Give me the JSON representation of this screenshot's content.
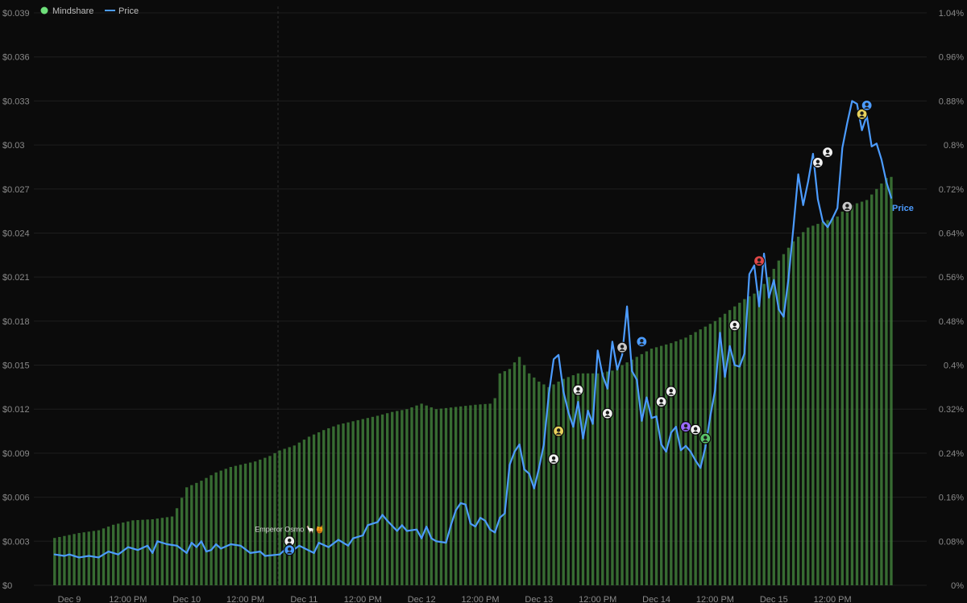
{
  "chart_data": {
    "type": "bar+line",
    "colors": {
      "background": "#0b0b0b",
      "mindshare": "#3f7d3a",
      "mindshare_legend": "#6ee07a",
      "price": "#4c9cff",
      "grid": "#1e1e1e"
    },
    "legend": [
      {
        "name": "Mindshare",
        "marker": "dot"
      },
      {
        "name": "Price",
        "marker": "line"
      }
    ],
    "legend_position": "top-left",
    "grid": true,
    "left_axis": {
      "range": [
        0,
        0.039
      ],
      "ticks": [
        "$0",
        "$0.003",
        "$0.006",
        "$0.009",
        "$0.012",
        "$0.015",
        "$0.018",
        "$0.021",
        "$0.024",
        "$0.027",
        "$0.03",
        "$0.033",
        "$0.036",
        "$0.039"
      ]
    },
    "right_axis": {
      "range": [
        0,
        1.04
      ],
      "ticks": [
        "0%",
        "0.08%",
        "0.16%",
        "0.24%",
        "0.32%",
        "0.4%",
        "0.48%",
        "0.56%",
        "0.64%",
        "0.72%",
        "0.8%",
        "0.88%",
        "0.96%",
        "1.04%"
      ]
    },
    "x_axis": {
      "range": [
        0,
        168
      ],
      "ticks": [
        {
          "x": 0,
          "label": "Dec 9"
        },
        {
          "x": 12,
          "label": "12:00 PM"
        },
        {
          "x": 24,
          "label": "Dec 10"
        },
        {
          "x": 36,
          "label": "12:00 PM"
        },
        {
          "x": 48,
          "label": "Dec 11"
        },
        {
          "x": 60,
          "label": "12:00 PM"
        },
        {
          "x": 72,
          "label": "Dec 12"
        },
        {
          "x": 84,
          "label": "12:00 PM"
        },
        {
          "x": 96,
          "label": "Dec 13"
        },
        {
          "x": 108,
          "label": "12:00 PM"
        },
        {
          "x": 120,
          "label": "Dec 14"
        },
        {
          "x": 132,
          "label": "12:00 PM"
        },
        {
          "x": 144,
          "label": "Dec 15"
        },
        {
          "x": 156,
          "label": "12:00 PM"
        }
      ]
    },
    "mindshare_keys": [
      [
        -3,
        0.086
      ],
      [
        2,
        0.095
      ],
      [
        6,
        0.1
      ],
      [
        9,
        0.11
      ],
      [
        13,
        0.118
      ],
      [
        17,
        0.12
      ],
      [
        21,
        0.125
      ],
      [
        22,
        0.14
      ],
      [
        24,
        0.178
      ],
      [
        27,
        0.19
      ],
      [
        30,
        0.205
      ],
      [
        33,
        0.215
      ],
      [
        38,
        0.225
      ],
      [
        41,
        0.235
      ],
      [
        43,
        0.245
      ],
      [
        46,
        0.254
      ],
      [
        49,
        0.27
      ],
      [
        52,
        0.282
      ],
      [
        55,
        0.292
      ],
      [
        58,
        0.298
      ],
      [
        63,
        0.308
      ],
      [
        66,
        0.315
      ],
      [
        69,
        0.32
      ],
      [
        72,
        0.33
      ],
      [
        75,
        0.32
      ],
      [
        80,
        0.325
      ],
      [
        83,
        0.328
      ],
      [
        86,
        0.33
      ],
      [
        87,
        0.34
      ],
      [
        88,
        0.385
      ],
      [
        90,
        0.393
      ],
      [
        91,
        0.405
      ],
      [
        92,
        0.415
      ],
      [
        94,
        0.385
      ],
      [
        96,
        0.37
      ],
      [
        98,
        0.36
      ],
      [
        101,
        0.375
      ],
      [
        104,
        0.385
      ],
      [
        108,
        0.385
      ],
      [
        111,
        0.39
      ],
      [
        116,
        0.415
      ],
      [
        119,
        0.43
      ],
      [
        123,
        0.44
      ],
      [
        126,
        0.45
      ],
      [
        130,
        0.47
      ],
      [
        132,
        0.48
      ],
      [
        135,
        0.5
      ],
      [
        138,
        0.52
      ],
      [
        141,
        0.535
      ],
      [
        143,
        0.56
      ],
      [
        145,
        0.59
      ],
      [
        148,
        0.625
      ],
      [
        151,
        0.65
      ],
      [
        154,
        0.66
      ],
      [
        157,
        0.67
      ],
      [
        159,
        0.688
      ],
      [
        163,
        0.7
      ],
      [
        165,
        0.72
      ],
      [
        167,
        0.74
      ],
      [
        168,
        0.742
      ]
    ],
    "price_keys": [
      [
        -3,
        0.0021
      ],
      [
        -1,
        0.002
      ],
      [
        0,
        0.0021
      ],
      [
        2,
        0.0019
      ],
      [
        4,
        0.002
      ],
      [
        6,
        0.0019
      ],
      [
        8,
        0.0023
      ],
      [
        10,
        0.0021
      ],
      [
        12,
        0.0026
      ],
      [
        14,
        0.0024
      ],
      [
        16,
        0.0027
      ],
      [
        17,
        0.0022
      ],
      [
        18,
        0.003
      ],
      [
        20,
        0.0028
      ],
      [
        22,
        0.0027
      ],
      [
        24,
        0.0022
      ],
      [
        25,
        0.0029
      ],
      [
        26,
        0.0026
      ],
      [
        27,
        0.003
      ],
      [
        28,
        0.0023
      ],
      [
        29,
        0.0024
      ],
      [
        30,
        0.0028
      ],
      [
        31,
        0.0025
      ],
      [
        33,
        0.0028
      ],
      [
        35,
        0.0027
      ],
      [
        37,
        0.0022
      ],
      [
        39,
        0.0023
      ],
      [
        40,
        0.002
      ],
      [
        43,
        0.0021
      ],
      [
        44,
        0.0024
      ],
      [
        45,
        0.0022
      ],
      [
        47,
        0.0027
      ],
      [
        50,
        0.0022
      ],
      [
        51,
        0.0029
      ],
      [
        53,
        0.0026
      ],
      [
        55,
        0.0031
      ],
      [
        57,
        0.0027
      ],
      [
        58,
        0.0032
      ],
      [
        60,
        0.0034
      ],
      [
        61,
        0.0041
      ],
      [
        62,
        0.0042
      ],
      [
        63,
        0.0043
      ],
      [
        64,
        0.0048
      ],
      [
        65,
        0.0044
      ],
      [
        67,
        0.0037
      ],
      [
        68,
        0.0041
      ],
      [
        69,
        0.0037
      ],
      [
        71,
        0.0038
      ],
      [
        72,
        0.0032
      ],
      [
        73,
        0.004
      ],
      [
        74,
        0.0032
      ],
      [
        75,
        0.003
      ],
      [
        77,
        0.0029
      ],
      [
        78,
        0.0041
      ],
      [
        79,
        0.0051
      ],
      [
        80,
        0.0056
      ],
      [
        81,
        0.0055
      ],
      [
        82,
        0.0042
      ],
      [
        83,
        0.004
      ],
      [
        84,
        0.0046
      ],
      [
        85,
        0.0044
      ],
      [
        86,
        0.0038
      ],
      [
        87,
        0.0036
      ],
      [
        88,
        0.0046
      ],
      [
        89,
        0.0049
      ],
      [
        90,
        0.0082
      ],
      [
        91,
        0.0091
      ],
      [
        92,
        0.0096
      ],
      [
        93,
        0.0079
      ],
      [
        94,
        0.0076
      ],
      [
        95,
        0.0066
      ],
      [
        96,
        0.008
      ],
      [
        97,
        0.0096
      ],
      [
        98,
        0.013
      ],
      [
        99,
        0.0154
      ],
      [
        100,
        0.0157
      ],
      [
        101,
        0.0132
      ],
      [
        102,
        0.0118
      ],
      [
        103,
        0.0108
      ],
      [
        104,
        0.0125
      ],
      [
        105,
        0.01
      ],
      [
        106,
        0.0119
      ],
      [
        107,
        0.011
      ],
      [
        108,
        0.016
      ],
      [
        109,
        0.0143
      ],
      [
        110,
        0.0134
      ],
      [
        111,
        0.0166
      ],
      [
        112,
        0.0147
      ],
      [
        113,
        0.0157
      ],
      [
        114,
        0.019
      ],
      [
        115,
        0.0146
      ],
      [
        116,
        0.014
      ],
      [
        117,
        0.0112
      ],
      [
        118,
        0.0128
      ],
      [
        119,
        0.0114
      ],
      [
        120,
        0.0115
      ],
      [
        121,
        0.0096
      ],
      [
        122,
        0.0091
      ],
      [
        123,
        0.0104
      ],
      [
        124,
        0.0108
      ],
      [
        125,
        0.0092
      ],
      [
        126,
        0.0095
      ],
      [
        127,
        0.0091
      ],
      [
        128,
        0.0085
      ],
      [
        129,
        0.008
      ],
      [
        130,
        0.0094
      ],
      [
        131,
        0.0115
      ],
      [
        132,
        0.0133
      ],
      [
        133,
        0.0172
      ],
      [
        134,
        0.0142
      ],
      [
        135,
        0.0163
      ],
      [
        136,
        0.015
      ],
      [
        137,
        0.0149
      ],
      [
        138,
        0.0158
      ],
      [
        139,
        0.0212
      ],
      [
        140,
        0.0218
      ],
      [
        141,
        0.019
      ],
      [
        142,
        0.0226
      ],
      [
        143,
        0.0196
      ],
      [
        144,
        0.0208
      ],
      [
        145,
        0.0188
      ],
      [
        146,
        0.0183
      ],
      [
        147,
        0.0209
      ],
      [
        148,
        0.0244
      ],
      [
        149,
        0.028
      ],
      [
        150,
        0.0259
      ],
      [
        151,
        0.0275
      ],
      [
        152,
        0.0294
      ],
      [
        153,
        0.0263
      ],
      [
        154,
        0.0248
      ],
      [
        155,
        0.0244
      ],
      [
        156,
        0.025
      ],
      [
        157,
        0.0257
      ],
      [
        158,
        0.0298
      ],
      [
        159,
        0.0315
      ],
      [
        160,
        0.033
      ],
      [
        161,
        0.0328
      ],
      [
        162,
        0.031
      ],
      [
        163,
        0.032
      ],
      [
        164,
        0.0299
      ],
      [
        165,
        0.0301
      ],
      [
        166,
        0.029
      ],
      [
        167,
        0.0275
      ],
      [
        168,
        0.0264
      ]
    ],
    "end_label": "Price",
    "annotation": {
      "text": "Emperor Osmo 🦙🍯",
      "x": 45,
      "y": 0.003
    },
    "markers": [
      {
        "x": 45,
        "y": 0.003,
        "color": "#f2f2f2"
      },
      {
        "x": 45,
        "y": 0.0024,
        "color": "#4c9cff"
      },
      {
        "x": 99,
        "y": 0.0086,
        "color": "#f2f2f2"
      },
      {
        "x": 100,
        "y": 0.0105,
        "color": "#e8d25c"
      },
      {
        "x": 104,
        "y": 0.0133,
        "color": "#f2f2f2"
      },
      {
        "x": 110,
        "y": 0.0117,
        "color": "#f2f2f2"
      },
      {
        "x": 113,
        "y": 0.0162,
        "color": "#c8c8c8"
      },
      {
        "x": 117,
        "y": 0.0166,
        "color": "#4c9cff"
      },
      {
        "x": 121,
        "y": 0.0125,
        "color": "#f2f2f2"
      },
      {
        "x": 123,
        "y": 0.0132,
        "color": "#f2f2f2"
      },
      {
        "x": 126,
        "y": 0.0108,
        "color": "#9a6cff"
      },
      {
        "x": 128,
        "y": 0.0106,
        "color": "#f2f2f2"
      },
      {
        "x": 130,
        "y": 0.01,
        "color": "#5ac46a"
      },
      {
        "x": 136,
        "y": 0.0177,
        "color": "#f2f2f2"
      },
      {
        "x": 141,
        "y": 0.0221,
        "color": "#e04848"
      },
      {
        "x": 153,
        "y": 0.0288,
        "color": "#f2f2f2"
      },
      {
        "x": 155,
        "y": 0.0295,
        "color": "#f2f2f2"
      },
      {
        "x": 159,
        "y": 0.0258,
        "color": "#c8c8c8"
      },
      {
        "x": 162,
        "y": 0.0321,
        "color": "#e8d25c"
      },
      {
        "x": 163,
        "y": 0.0327,
        "color": "#4c9cff"
      }
    ]
  }
}
